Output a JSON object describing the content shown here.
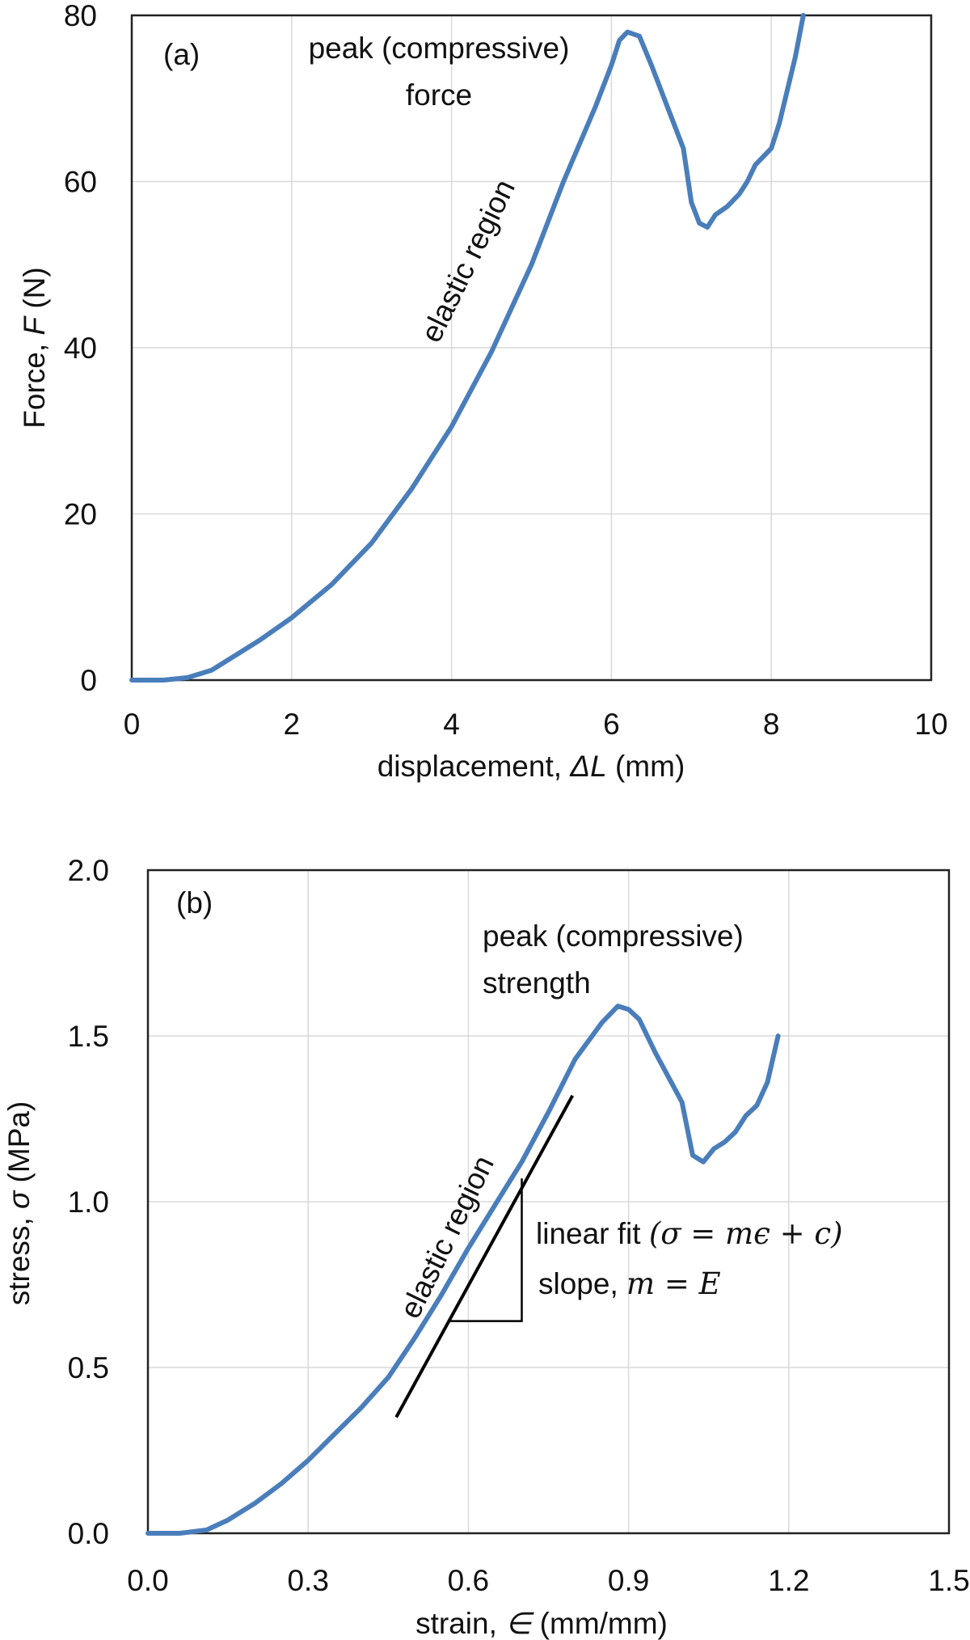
{
  "chart_data": [
    {
      "type": "line",
      "panel_label": "(a)",
      "xlabel_prefix": "displacement, ",
      "xlabel_var": "ΔL",
      "xlabel_suffix": " (mm)",
      "ylabel_prefix": "Force, ",
      "ylabel_var": "F",
      "ylabel_suffix": " (N)",
      "xlim": [
        0,
        10
      ],
      "ylim": [
        0,
        80
      ],
      "xticks": [
        "0",
        "2",
        "4",
        "6",
        "8",
        "10"
      ],
      "yticks": [
        "0",
        "20",
        "40",
        "60",
        "80"
      ],
      "grid": true,
      "series_color": "#4a7ebb",
      "annotations": {
        "peak_line1": "peak (compressive)",
        "peak_line2": "force",
        "elastic": "elastic region"
      },
      "series": [
        {
          "x": [
            0,
            0.4,
            0.7,
            1.0,
            1.3,
            1.6,
            2.0,
            2.5,
            3.0,
            3.5,
            4.0,
            4.5,
            5.0,
            5.4,
            5.8,
            6.0,
            6.1,
            6.2,
            6.35,
            6.5,
            6.7,
            6.9,
            7.0,
            7.1,
            7.2,
            7.3,
            7.45,
            7.6,
            7.7,
            7.8,
            8.0,
            8.1,
            8.2,
            8.3,
            8.4
          ],
          "y": [
            0,
            0,
            0.3,
            1.2,
            3,
            4.8,
            7.5,
            11.5,
            16.5,
            23,
            30.5,
            39.5,
            50,
            60,
            69,
            74,
            77,
            78,
            77.5,
            74,
            69,
            64,
            57.5,
            55,
            54.5,
            56,
            57,
            58.5,
            60,
            62,
            64,
            67,
            71,
            75,
            80
          ]
        }
      ]
    },
    {
      "type": "line",
      "panel_label": "(b)",
      "xlabel_prefix": "strain, ",
      "xlabel_var": "∈",
      "xlabel_suffix": " (mm/mm)",
      "ylabel_prefix": "stress, ",
      "ylabel_var": "σ",
      "ylabel_suffix": " (MPa)",
      "xlim": [
        0,
        1.5
      ],
      "ylim": [
        0,
        2.0
      ],
      "xticks": [
        "0.0",
        "0.3",
        "0.6",
        "0.9",
        "1.2",
        "1.5"
      ],
      "yticks": [
        "0.0",
        "0.5",
        "1.0",
        "1.5",
        "2.0"
      ],
      "grid": true,
      "series_color": "#4a7ebb",
      "annotations": {
        "peak_line1": "peak (compressive)",
        "peak_line2": "strength",
        "elastic": "elastic region",
        "fit_prefix": "linear fit  ",
        "fit_equation": "(σ = mϵ + c)",
        "slope_prefix": "slope, ",
        "slope_equation": "m = E"
      },
      "fit_line": {
        "x": [
          0.465,
          0.795
        ],
        "y": [
          0.35,
          1.32
        ]
      },
      "slope_triangle": {
        "x": [
          0.565,
          0.7
        ],
        "y": [
          0.64,
          1.07
        ]
      },
      "series": [
        {
          "x": [
            0,
            0.06,
            0.11,
            0.15,
            0.2,
            0.25,
            0.3,
            0.35,
            0.4,
            0.45,
            0.5,
            0.55,
            0.6,
            0.65,
            0.7,
            0.75,
            0.8,
            0.85,
            0.88,
            0.9,
            0.92,
            0.95,
            0.98,
            1.0,
            1.02,
            1.04,
            1.06,
            1.08,
            1.1,
            1.12,
            1.14,
            1.16,
            1.18
          ],
          "y": [
            0,
            0,
            0.01,
            0.04,
            0.09,
            0.15,
            0.22,
            0.3,
            0.38,
            0.47,
            0.59,
            0.72,
            0.86,
            0.99,
            1.12,
            1.27,
            1.43,
            1.54,
            1.59,
            1.58,
            1.55,
            1.45,
            1.36,
            1.3,
            1.14,
            1.12,
            1.16,
            1.18,
            1.21,
            1.26,
            1.29,
            1.36,
            1.5
          ]
        }
      ]
    }
  ]
}
